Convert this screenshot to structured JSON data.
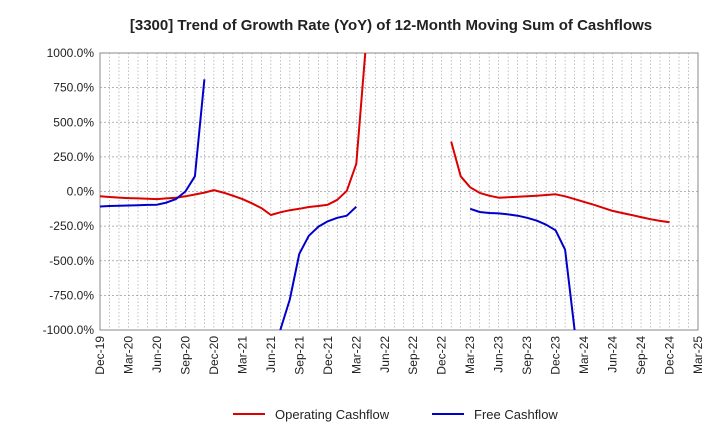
{
  "chart_data": {
    "type": "line",
    "title": "[3300]  Trend of Growth Rate (YoY) of 12-Month Moving Sum of Cashflows",
    "xlabel": "",
    "ylabel": "",
    "ylim": [
      -1000,
      1000
    ],
    "yticks": [
      1000,
      750,
      500,
      250,
      0,
      -250,
      -500,
      -750,
      -1000
    ],
    "ytick_labels": [
      "1000.0%",
      "750.0%",
      "500.0%",
      "250.0%",
      "0.0%",
      "-250.0%",
      "-500.0%",
      "-750.0%",
      "-1000.0%"
    ],
    "x_start": "2019-12",
    "x_end": "2025-03",
    "xtick_labels": [
      "Dec-19",
      "Mar-20",
      "Jun-20",
      "Sep-20",
      "Dec-20",
      "Mar-21",
      "Jun-21",
      "Sep-21",
      "Dec-21",
      "Mar-22",
      "Jun-22",
      "Sep-22",
      "Dec-22",
      "Mar-23",
      "Jun-23",
      "Sep-23",
      "Dec-23",
      "Mar-24",
      "Jun-24",
      "Sep-24",
      "Dec-24",
      "Mar-25"
    ],
    "grid": true,
    "legend_position": "bottom",
    "series": [
      {
        "name": "Operating Cashflow",
        "color": "#dd0000",
        "points": [
          [
            "2019-12",
            -35
          ],
          [
            "2020-01",
            -40
          ],
          [
            "2020-02",
            -44
          ],
          [
            "2020-03",
            -48
          ],
          [
            "2020-04",
            -50
          ],
          [
            "2020-05",
            -53
          ],
          [
            "2020-06",
            -55
          ],
          [
            "2020-07",
            -50
          ],
          [
            "2020-08",
            -45
          ],
          [
            "2020-09",
            -35
          ],
          [
            "2020-10",
            -22
          ],
          [
            "2020-11",
            -8
          ],
          [
            "2020-12",
            10
          ],
          [
            "2021-01",
            -8
          ],
          [
            "2021-02",
            -30
          ],
          [
            "2021-03",
            -55
          ],
          [
            "2021-04",
            -85
          ],
          [
            "2021-05",
            -120
          ],
          [
            "2021-06",
            -170
          ],
          [
            "2021-07",
            -150
          ],
          [
            "2021-08",
            -135
          ],
          [
            "2021-09",
            -125
          ],
          [
            "2021-10",
            -112
          ],
          [
            "2021-11",
            -105
          ],
          [
            "2021-12",
            -95
          ],
          [
            "2022-01",
            -60
          ],
          [
            "2022-02",
            5
          ],
          [
            "2022-03",
            200
          ],
          [
            "2022-04",
            1050
          ],
          null,
          [
            "2023-01",
            360
          ],
          [
            "2023-02",
            110
          ],
          [
            "2023-03",
            30
          ],
          [
            "2023-04",
            -10
          ],
          [
            "2023-05",
            -30
          ],
          [
            "2023-06",
            -45
          ],
          [
            "2023-07",
            -42
          ],
          [
            "2023-08",
            -38
          ],
          [
            "2023-09",
            -34
          ],
          [
            "2023-10",
            -30
          ],
          [
            "2023-11",
            -25
          ],
          [
            "2023-12",
            -20
          ],
          [
            "2024-01",
            -35
          ],
          [
            "2024-02",
            -55
          ],
          [
            "2024-03",
            -75
          ],
          [
            "2024-04",
            -95
          ],
          [
            "2024-05",
            -118
          ],
          [
            "2024-06",
            -140
          ],
          [
            "2024-07",
            -155
          ],
          [
            "2024-08",
            -170
          ],
          [
            "2024-09",
            -185
          ],
          [
            "2024-10",
            -200
          ],
          [
            "2024-11",
            -212
          ],
          [
            "2024-12",
            -222
          ]
        ]
      },
      {
        "name": "Free Cashflow",
        "color": "#0000cc",
        "points": [
          [
            "2019-12",
            -108
          ],
          [
            "2020-01",
            -105
          ],
          [
            "2020-02",
            -103
          ],
          [
            "2020-03",
            -101
          ],
          [
            "2020-04",
            -99
          ],
          [
            "2020-05",
            -97
          ],
          [
            "2020-06",
            -95
          ],
          [
            "2020-07",
            -80
          ],
          [
            "2020-08",
            -55
          ],
          [
            "2020-09",
            0
          ],
          [
            "2020-10",
            110
          ],
          [
            "2020-11",
            810
          ],
          null,
          [
            "2021-07",
            -1000
          ],
          [
            "2021-08",
            -780
          ],
          [
            "2021-09",
            -450
          ],
          [
            "2021-10",
            -320
          ],
          [
            "2021-11",
            -255
          ],
          [
            "2021-12",
            -215
          ],
          [
            "2022-01",
            -190
          ],
          [
            "2022-02",
            -175
          ],
          [
            "2022-03",
            -110
          ],
          null,
          [
            "2023-03",
            -125
          ],
          [
            "2023-04",
            -148
          ],
          [
            "2023-05",
            -155
          ],
          [
            "2023-06",
            -158
          ],
          [
            "2023-07",
            -165
          ],
          [
            "2023-08",
            -175
          ],
          [
            "2023-09",
            -190
          ],
          [
            "2023-10",
            -210
          ],
          [
            "2023-11",
            -240
          ],
          [
            "2023-12",
            -280
          ],
          [
            "2024-01",
            -420
          ],
          [
            "2024-02",
            -1000
          ]
        ]
      }
    ]
  }
}
